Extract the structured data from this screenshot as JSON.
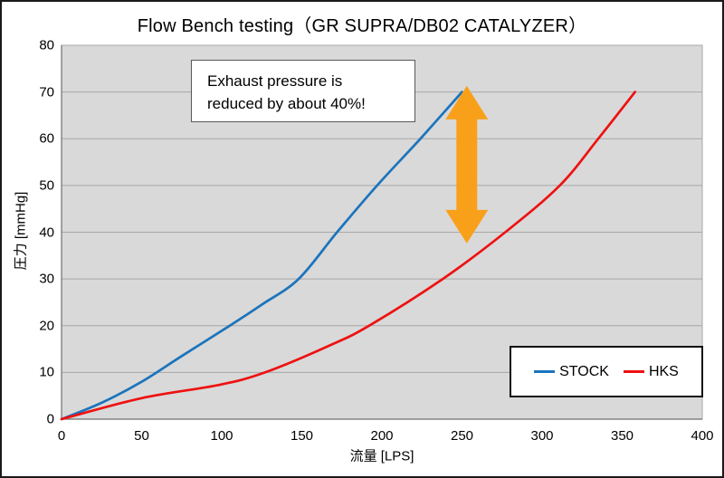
{
  "chart_data": {
    "type": "line",
    "title": "Flow Bench testing（GR SUPRA/DB02 CATALYZER）",
    "xlabel": "流量 [LPS]",
    "ylabel": "圧力 [mmHg]",
    "xlim": [
      0,
      400
    ],
    "ylim": [
      0,
      80
    ],
    "x_ticks": [
      0,
      50,
      100,
      150,
      200,
      250,
      300,
      350,
      400
    ],
    "y_ticks": [
      0,
      10,
      20,
      30,
      40,
      50,
      60,
      70,
      80
    ],
    "grid": "horizontal",
    "legend_position": "bottom-right",
    "series": [
      {
        "name": "STOCK",
        "color": "#1b74bc",
        "points": [
          [
            0,
            0
          ],
          [
            25,
            3.5
          ],
          [
            50,
            8
          ],
          [
            75,
            13.5
          ],
          [
            105,
            20
          ],
          [
            125,
            24.5
          ],
          [
            148,
            30
          ],
          [
            172,
            40
          ],
          [
            197,
            50
          ],
          [
            224,
            60
          ],
          [
            250,
            70
          ]
        ]
      },
      {
        "name": "HKS",
        "color": "#ee1111",
        "points": [
          [
            0,
            0
          ],
          [
            50,
            4.5
          ],
          [
            98,
            7.3
          ],
          [
            127,
            10
          ],
          [
            167,
            15.7
          ],
          [
            192,
            20
          ],
          [
            238,
            30
          ],
          [
            277,
            40
          ],
          [
            311,
            50
          ],
          [
            335,
            60
          ],
          [
            358,
            70
          ]
        ]
      }
    ],
    "annotation": {
      "line1": "Exhaust pressure is",
      "line2": "reduced by about 40%!"
    },
    "arrow": {
      "x": 253,
      "y_from": 71.3,
      "y_to": 37.6,
      "color": "#f9a01b"
    }
  },
  "colors": {
    "plot_bg": "#d9d9d9",
    "gridline": "#a8a8a8",
    "axis": "#6e6e6e",
    "text": "#000000"
  }
}
